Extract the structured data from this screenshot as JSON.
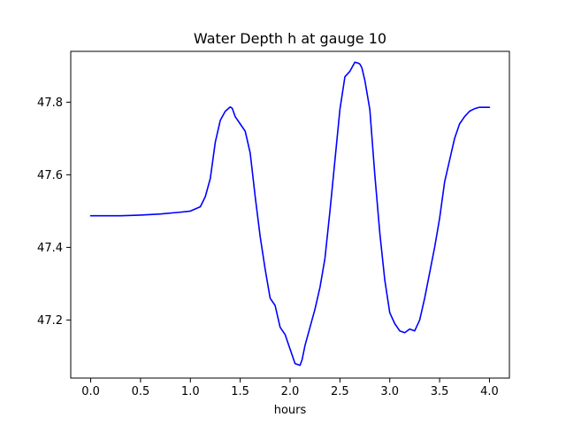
{
  "chart_data": {
    "type": "line",
    "title": "Water Depth h at gauge 10",
    "xlabel": "hours",
    "ylabel": "",
    "xlim": [
      -0.2,
      4.2
    ],
    "ylim": [
      47.04,
      47.94
    ],
    "grid": false,
    "x_ticks": [
      0.0,
      0.5,
      1.0,
      1.5,
      2.0,
      2.5,
      3.0,
      3.5,
      4.0
    ],
    "x_tick_labels": [
      "0.0",
      "0.5",
      "1.0",
      "1.5",
      "2.0",
      "2.5",
      "3.0",
      "3.5",
      "4.0"
    ],
    "y_ticks": [
      47.2,
      47.4,
      47.6,
      47.8
    ],
    "y_tick_labels": [
      "47.2",
      "47.4",
      "47.6",
      "47.8"
    ],
    "series": [
      {
        "color": "#0000ff",
        "x": [
          0.0,
          0.3,
          0.5,
          0.7,
          0.9,
          1.0,
          1.1,
          1.15,
          1.2,
          1.25,
          1.3,
          1.35,
          1.4,
          1.42,
          1.45,
          1.5,
          1.55,
          1.6,
          1.65,
          1.7,
          1.75,
          1.8,
          1.85,
          1.9,
          1.95,
          2.0,
          2.05,
          2.1,
          2.12,
          2.15,
          2.2,
          2.25,
          2.3,
          2.35,
          2.4,
          2.45,
          2.5,
          2.55,
          2.6,
          2.65,
          2.68,
          2.7,
          2.72,
          2.75,
          2.8,
          2.85,
          2.9,
          2.95,
          3.0,
          3.05,
          3.1,
          3.15,
          3.2,
          3.25,
          3.3,
          3.35,
          3.4,
          3.45,
          3.5,
          3.55,
          3.6,
          3.65,
          3.7,
          3.75,
          3.8,
          3.85,
          3.9,
          3.95,
          4.0
        ],
        "values": [
          47.487,
          47.487,
          47.489,
          47.492,
          47.497,
          47.5,
          47.512,
          47.54,
          47.59,
          47.69,
          47.75,
          47.775,
          47.787,
          47.783,
          47.76,
          47.74,
          47.72,
          47.66,
          47.54,
          47.43,
          47.34,
          47.26,
          47.24,
          47.18,
          47.16,
          47.12,
          47.08,
          47.075,
          47.09,
          47.13,
          47.18,
          47.23,
          47.29,
          47.37,
          47.5,
          47.64,
          47.78,
          47.87,
          47.885,
          47.91,
          47.908,
          47.905,
          47.895,
          47.86,
          47.78,
          47.6,
          47.44,
          47.31,
          47.22,
          47.19,
          47.17,
          47.165,
          47.175,
          47.17,
          47.2,
          47.26,
          47.33,
          47.4,
          47.48,
          47.58,
          47.64,
          47.7,
          47.74,
          47.76,
          47.775,
          47.782,
          47.786,
          47.786,
          47.786
        ]
      }
    ]
  }
}
